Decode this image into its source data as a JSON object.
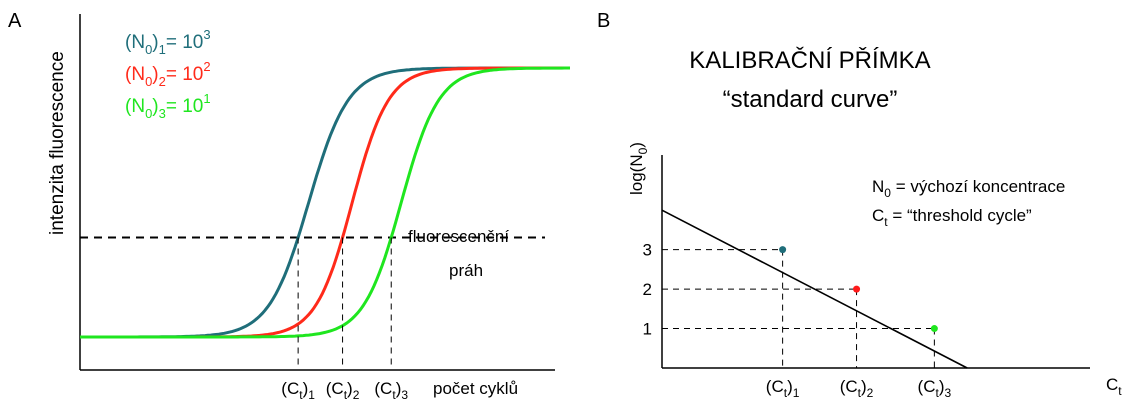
{
  "chart_data": [
    {
      "panel_letter": "A",
      "type": "line",
      "title": "",
      "xlabel": "počet cyklů",
      "ylabel": "intenzita fluorescence",
      "threshold_label_line1": "fluorescenční",
      "threshold_label_line2": "práh",
      "x_markers": [
        {
          "base": "(C",
          "sub": "t",
          "close": ")",
          "sub2": "1",
          "x": 21
        },
        {
          "base": "(C",
          "sub": "t",
          "close": ")",
          "sub2": "2",
          "x": 25
        },
        {
          "base": "(C",
          "sub": "t",
          "close": ")",
          "sub2": "3",
          "x": 29.5
        }
      ],
      "threshold": 0.37,
      "xlim": [
        0,
        45
      ],
      "ylim": [
        0,
        1
      ],
      "grid": false,
      "legend": "top-left",
      "series": [
        {
          "name_base": "(N",
          "name_sub": "0",
          "name_close": ")",
          "name_sub2": "1",
          "name_eq": "= 10",
          "name_sup": "3",
          "color": "#1f6e7a",
          "midpoint": 21,
          "steepness": 0.55
        },
        {
          "name_base": "(N",
          "name_sub": "0",
          "name_close": ")",
          "name_sub2": "2",
          "name_eq": "= 10",
          "name_sup": "2",
          "color": "#ff2a1a",
          "midpoint": 25,
          "steepness": 0.6
        },
        {
          "name_base": "(N",
          "name_sub": "0",
          "name_close": ")",
          "name_sub2": "3",
          "name_eq": "= 10",
          "name_sup": "1",
          "color": "#1fe61f",
          "midpoint": 29.5,
          "steepness": 0.58
        }
      ]
    },
    {
      "panel_letter": "B",
      "type": "scatter",
      "title_line1": "KALIBRAČNÍ PŘÍMKA",
      "title_line2": "“standard curve”",
      "xlabel_base": "C",
      "xlabel_sub": "t",
      "ylabel_base": "log(N",
      "ylabel_sub": "0",
      "ylabel_close": ")",
      "yticks": [
        "1",
        "2",
        "3"
      ],
      "note1_base": "N",
      "note1_sub": "0",
      "note1_text": " = výchozí koncentrace",
      "note2_base": "C",
      "note2_sub": "t",
      "note2_text": " = “threshold cycle”",
      "xlim": [
        0,
        5.5
      ],
      "ylim": [
        0,
        5.5
      ],
      "line": {
        "x0": 0,
        "y0": 4.0,
        "x1": 5.0,
        "y1": -1.1
      },
      "points": [
        {
          "label_base": "(C",
          "label_sub": "t",
          "label_close": ")",
          "label_sub2": "1",
          "x": 1.55,
          "y": 3,
          "color": "#1f6e7a"
        },
        {
          "label_base": "(C",
          "label_sub": "t",
          "label_close": ")",
          "label_sub2": "2",
          "x": 2.5,
          "y": 2,
          "color": "#ff1a1a"
        },
        {
          "label_base": "(C",
          "label_sub": "t",
          "label_close": ")",
          "label_sub2": "3",
          "x": 3.5,
          "y": 1,
          "color": "#1fe61f"
        }
      ],
      "grid": false
    }
  ]
}
